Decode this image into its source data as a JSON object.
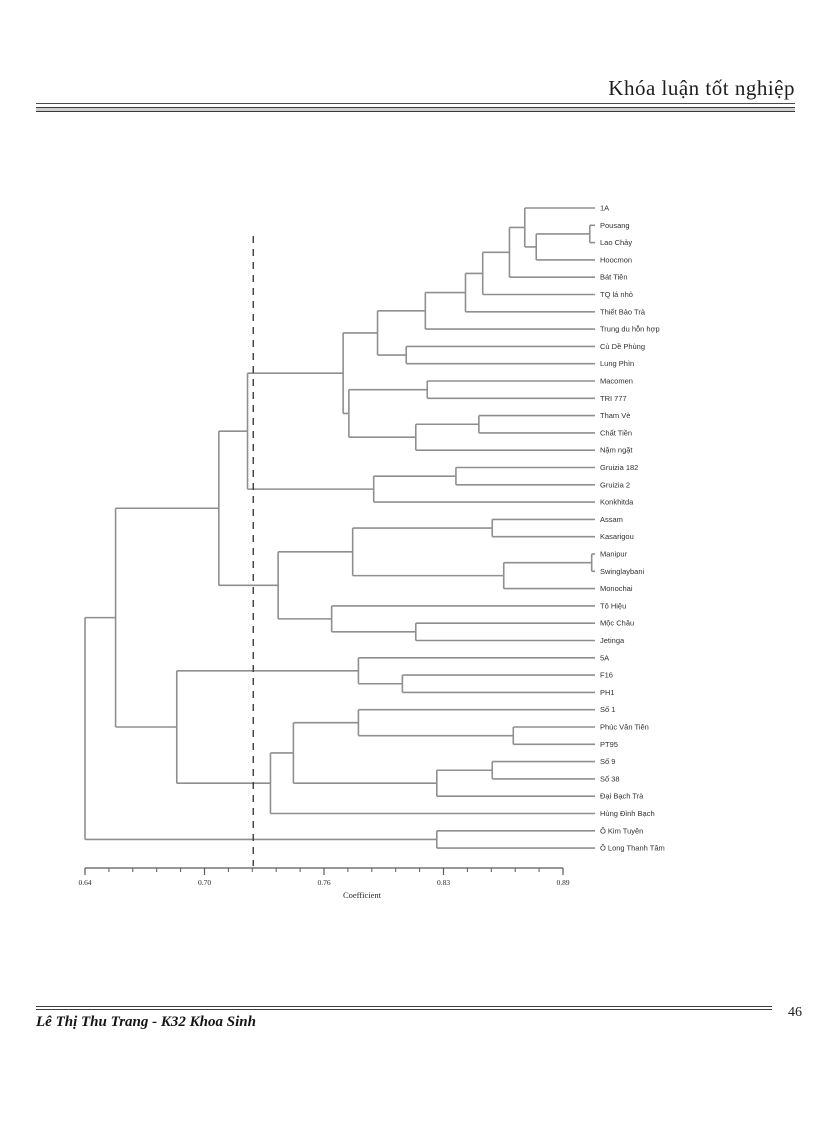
{
  "page": {
    "header_title": "Khóa luận tốt nghiệp",
    "footer_text": "Lê Thị Thu Trang - K32 Khoa Sinh",
    "page_number": "46"
  },
  "colors": {
    "tree_line": "#8f8f8f",
    "axis_line": "#5a5a5a",
    "label_text": "#303030",
    "axis_text": "#2a2a2a",
    "threshold_line": "#3c3c3c"
  },
  "chart_data": {
    "type": "dendrogram",
    "title": "",
    "xlabel": "Coefficient",
    "axis": {
      "range": [
        0.64,
        0.89
      ],
      "tick_labels": [
        "0.64",
        "0.70",
        "0.76",
        "0.83",
        "0.89"
      ],
      "tick_values": [
        0.64,
        0.7,
        0.76,
        0.83,
        0.89
      ],
      "minor_ticks_per_interval": 4,
      "grid": false
    },
    "threshold_coefficient": 0.728,
    "leaves": [
      "1A",
      "Pousang",
      "Lao Chảy",
      "Hoocmon",
      "Bát Tiên",
      "TQ lá nhỏ",
      "Thiết Bảo Trà",
      "Trung du hỗn hợp",
      "Củ Dề Phùng",
      "Lung Phìn",
      "Macomen",
      "TRI 777",
      "Tham Vè",
      "Chất Tiền",
      "Nậm ngặt",
      "Gruizia 182",
      "Gruizia 2",
      "Konkhitda",
      "Assam",
      "Kasarigou",
      "Manipur",
      "Swinglaybani",
      "Monochai",
      "Tô Hiệu",
      "Mộc Châu",
      "Jetinga",
      "5A",
      "F16",
      "PH1",
      "Số 1",
      "Phúc Vân Tiên",
      "PT95",
      "Số 9",
      "Số 38",
      "Đại Bạch Trà",
      "Hùng Đỉnh Bạch",
      "Ô Kim Tuyên",
      "Ô Long Thanh Tâm"
    ],
    "tree": {
      "c": 0.64,
      "ch": [
        {
          "c": 0.656,
          "ch": [
            {
              "c": 0.71,
              "ch": [
                {
                  "c": 0.725,
                  "ch": [
                    {
                      "c": 0.775,
                      "ch": [
                        {
                          "c": 0.793,
                          "ch": [
                            {
                              "c": 0.818,
                              "ch": [
                                {
                                  "c": 0.839,
                                  "ch": [
                                    {
                                      "c": 0.848,
                                      "ch": [
                                        {
                                          "c": 0.862,
                                          "ch": [
                                            {
                                              "c": 0.87,
                                              "ch": [
                                                "1A",
                                                {
                                                  "c": 0.876,
                                                  "ch": [
                                                    {
                                                      "c": 0.904,
                                                      "ch": [
                                                        "Pousang",
                                                        "Lao Chảy"
                                                      ]
                                                    },
                                                    "Hoocmon"
                                                  ]
                                                }
                                              ]
                                            },
                                            "Bát Tiên"
                                          ]
                                        },
                                        "TQ lá nhỏ"
                                      ]
                                    },
                                    "Thiết Bảo Trà"
                                  ]
                                },
                                "Trung du hỗn hợp"
                              ]
                            },
                            {
                              "c": 0.808,
                              "ch": [
                                "Củ Dề Phùng",
                                "Lung Phìn"
                              ]
                            }
                          ]
                        },
                        {
                          "c": 0.778,
                          "ch": [
                            {
                              "c": 0.819,
                              "ch": [
                                "Macomen",
                                "TRI 777"
                              ]
                            },
                            {
                              "c": 0.813,
                              "ch": [
                                {
                                  "c": 0.846,
                                  "ch": [
                                    "Tham Vè",
                                    "Chất Tiền"
                                  ]
                                },
                                "Nậm ngặt"
                              ]
                            }
                          ]
                        }
                      ]
                    },
                    {
                      "c": 0.791,
                      "ch": [
                        {
                          "c": 0.834,
                          "ch": [
                            "Gruizia 182",
                            "Gruizia 2"
                          ]
                        },
                        "Konkhitda"
                      ]
                    }
                  ]
                },
                {
                  "c": 0.741,
                  "ch": [
                    {
                      "c": 0.78,
                      "ch": [
                        {
                          "c": 0.853,
                          "ch": [
                            "Assam",
                            "Kasarigou"
                          ]
                        },
                        {
                          "c": 0.859,
                          "ch": [
                            {
                              "c": 0.905,
                              "ch": [
                                "Manipur",
                                "Swinglaybani"
                              ]
                            },
                            "Monochai"
                          ]
                        }
                      ]
                    },
                    {
                      "c": 0.769,
                      "ch": [
                        "Tô Hiệu",
                        {
                          "c": 0.813,
                          "ch": [
                            "Mộc Châu",
                            "Jetinga"
                          ]
                        }
                      ]
                    }
                  ]
                }
              ]
            },
            {
              "c": 0.688,
              "ch": [
                {
                  "c": 0.783,
                  "ch": [
                    "5A",
                    {
                      "c": 0.806,
                      "ch": [
                        "F16",
                        "PH1"
                      ]
                    }
                  ]
                },
                {
                  "c": 0.737,
                  "ch": [
                    {
                      "c": 0.749,
                      "ch": [
                        {
                          "c": 0.783,
                          "ch": [
                            "Số 1",
                            {
                              "c": 0.864,
                              "ch": [
                                "Phúc Vân Tiên",
                                "PT95"
                              ]
                            }
                          ]
                        },
                        {
                          "c": 0.824,
                          "ch": [
                            {
                              "c": 0.853,
                              "ch": [
                                "Số 9",
                                "Số 38"
                              ]
                            },
                            "Đại Bạch Trà"
                          ]
                        }
                      ]
                    },
                    "Hùng Đỉnh Bạch"
                  ]
                }
              ]
            }
          ]
        },
        {
          "c": 0.824,
          "ch": [
            "Ô Kim Tuyên",
            "Ô Long Thanh Tâm"
          ]
        }
      ]
    }
  }
}
